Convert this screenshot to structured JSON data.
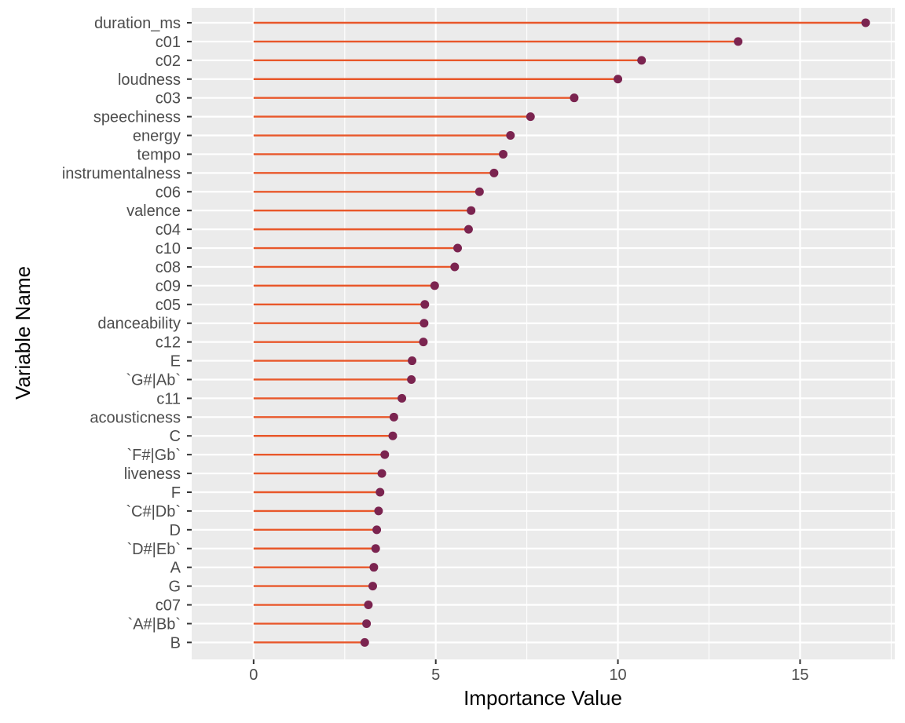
{
  "chart_data": {
    "type": "lollipop",
    "orientation": "horizontal",
    "xlabel": "Importance Value",
    "ylabel": "Variable Name",
    "xlim": [
      -1.7,
      17.6
    ],
    "xticks": [
      0,
      5,
      10,
      15
    ],
    "grid": true,
    "legend": "none",
    "colors": {
      "panel_background": "#ebebeb",
      "grid": "#ffffff",
      "segment": "#e8572a",
      "point": "#7b2450"
    },
    "categories": [
      "duration_ms",
      "c01",
      "c02",
      "loudness",
      "c03",
      "speechiness",
      "energy",
      "tempo",
      "instrumentalness",
      "c06",
      "valence",
      "c04",
      "c10",
      "c08",
      "c09",
      "c05",
      "danceability",
      "c12",
      "E",
      "`G#|Ab`",
      "c11",
      "acousticness",
      "C",
      "`F#|Gb`",
      "liveness",
      "F",
      "`C#|Db`",
      "D",
      "`D#|Eb`",
      "A",
      "G",
      "c07",
      "`A#|Bb`",
      "B"
    ],
    "values": [
      16.8,
      13.3,
      10.65,
      10.0,
      8.8,
      7.6,
      7.05,
      6.85,
      6.6,
      6.2,
      5.97,
      5.9,
      5.6,
      5.52,
      4.97,
      4.7,
      4.68,
      4.66,
      4.35,
      4.33,
      4.07,
      3.85,
      3.82,
      3.6,
      3.52,
      3.47,
      3.43,
      3.38,
      3.35,
      3.3,
      3.27,
      3.15,
      3.1,
      3.05
    ]
  }
}
